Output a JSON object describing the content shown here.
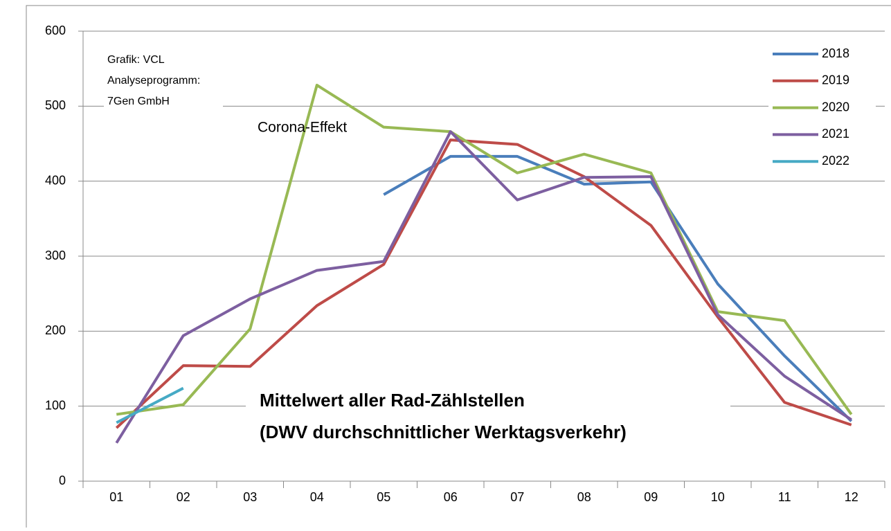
{
  "chart_data": {
    "type": "line",
    "categories": [
      "01",
      "02",
      "03",
      "04",
      "05",
      "06",
      "07",
      "08",
      "09",
      "10",
      "11",
      "12"
    ],
    "series": [
      {
        "name": "2018",
        "color": "#4a7ebb",
        "values": [
          null,
          null,
          null,
          null,
          382,
          433,
          433,
          396,
          399,
          263,
          167,
          80
        ]
      },
      {
        "name": "2019",
        "color": "#be4b48",
        "values": [
          71,
          154,
          153,
          234,
          289,
          455,
          449,
          406,
          341,
          219,
          105,
          75
        ]
      },
      {
        "name": "2020",
        "color": "#98b954",
        "values": [
          89,
          102,
          203,
          528,
          472,
          466,
          411,
          436,
          411,
          226,
          214,
          89
        ]
      },
      {
        "name": "2021",
        "color": "#7d5fa0",
        "values": [
          51,
          194,
          243,
          281,
          293,
          466,
          375,
          405,
          406,
          222,
          140,
          82
        ]
      },
      {
        "name": "2022",
        "color": "#46aac5",
        "values": [
          78,
          124,
          null,
          null,
          null,
          null,
          null,
          null,
          null,
          null,
          null,
          null
        ]
      }
    ],
    "ylim": [
      0,
      600
    ],
    "yticks": [
      0,
      100,
      200,
      300,
      400,
      500,
      600
    ],
    "grid": true,
    "legend": "top-right",
    "source_note": [
      "Grafik: VCL",
      "Analyseprogramm:",
      "7Gen GmbH"
    ],
    "annotation": "Corona-Effekt",
    "caption": [
      "Mittelwert aller Rad-Zählstellen",
      "(DWV durchschnittlicher Werktagsverkehr)"
    ]
  }
}
